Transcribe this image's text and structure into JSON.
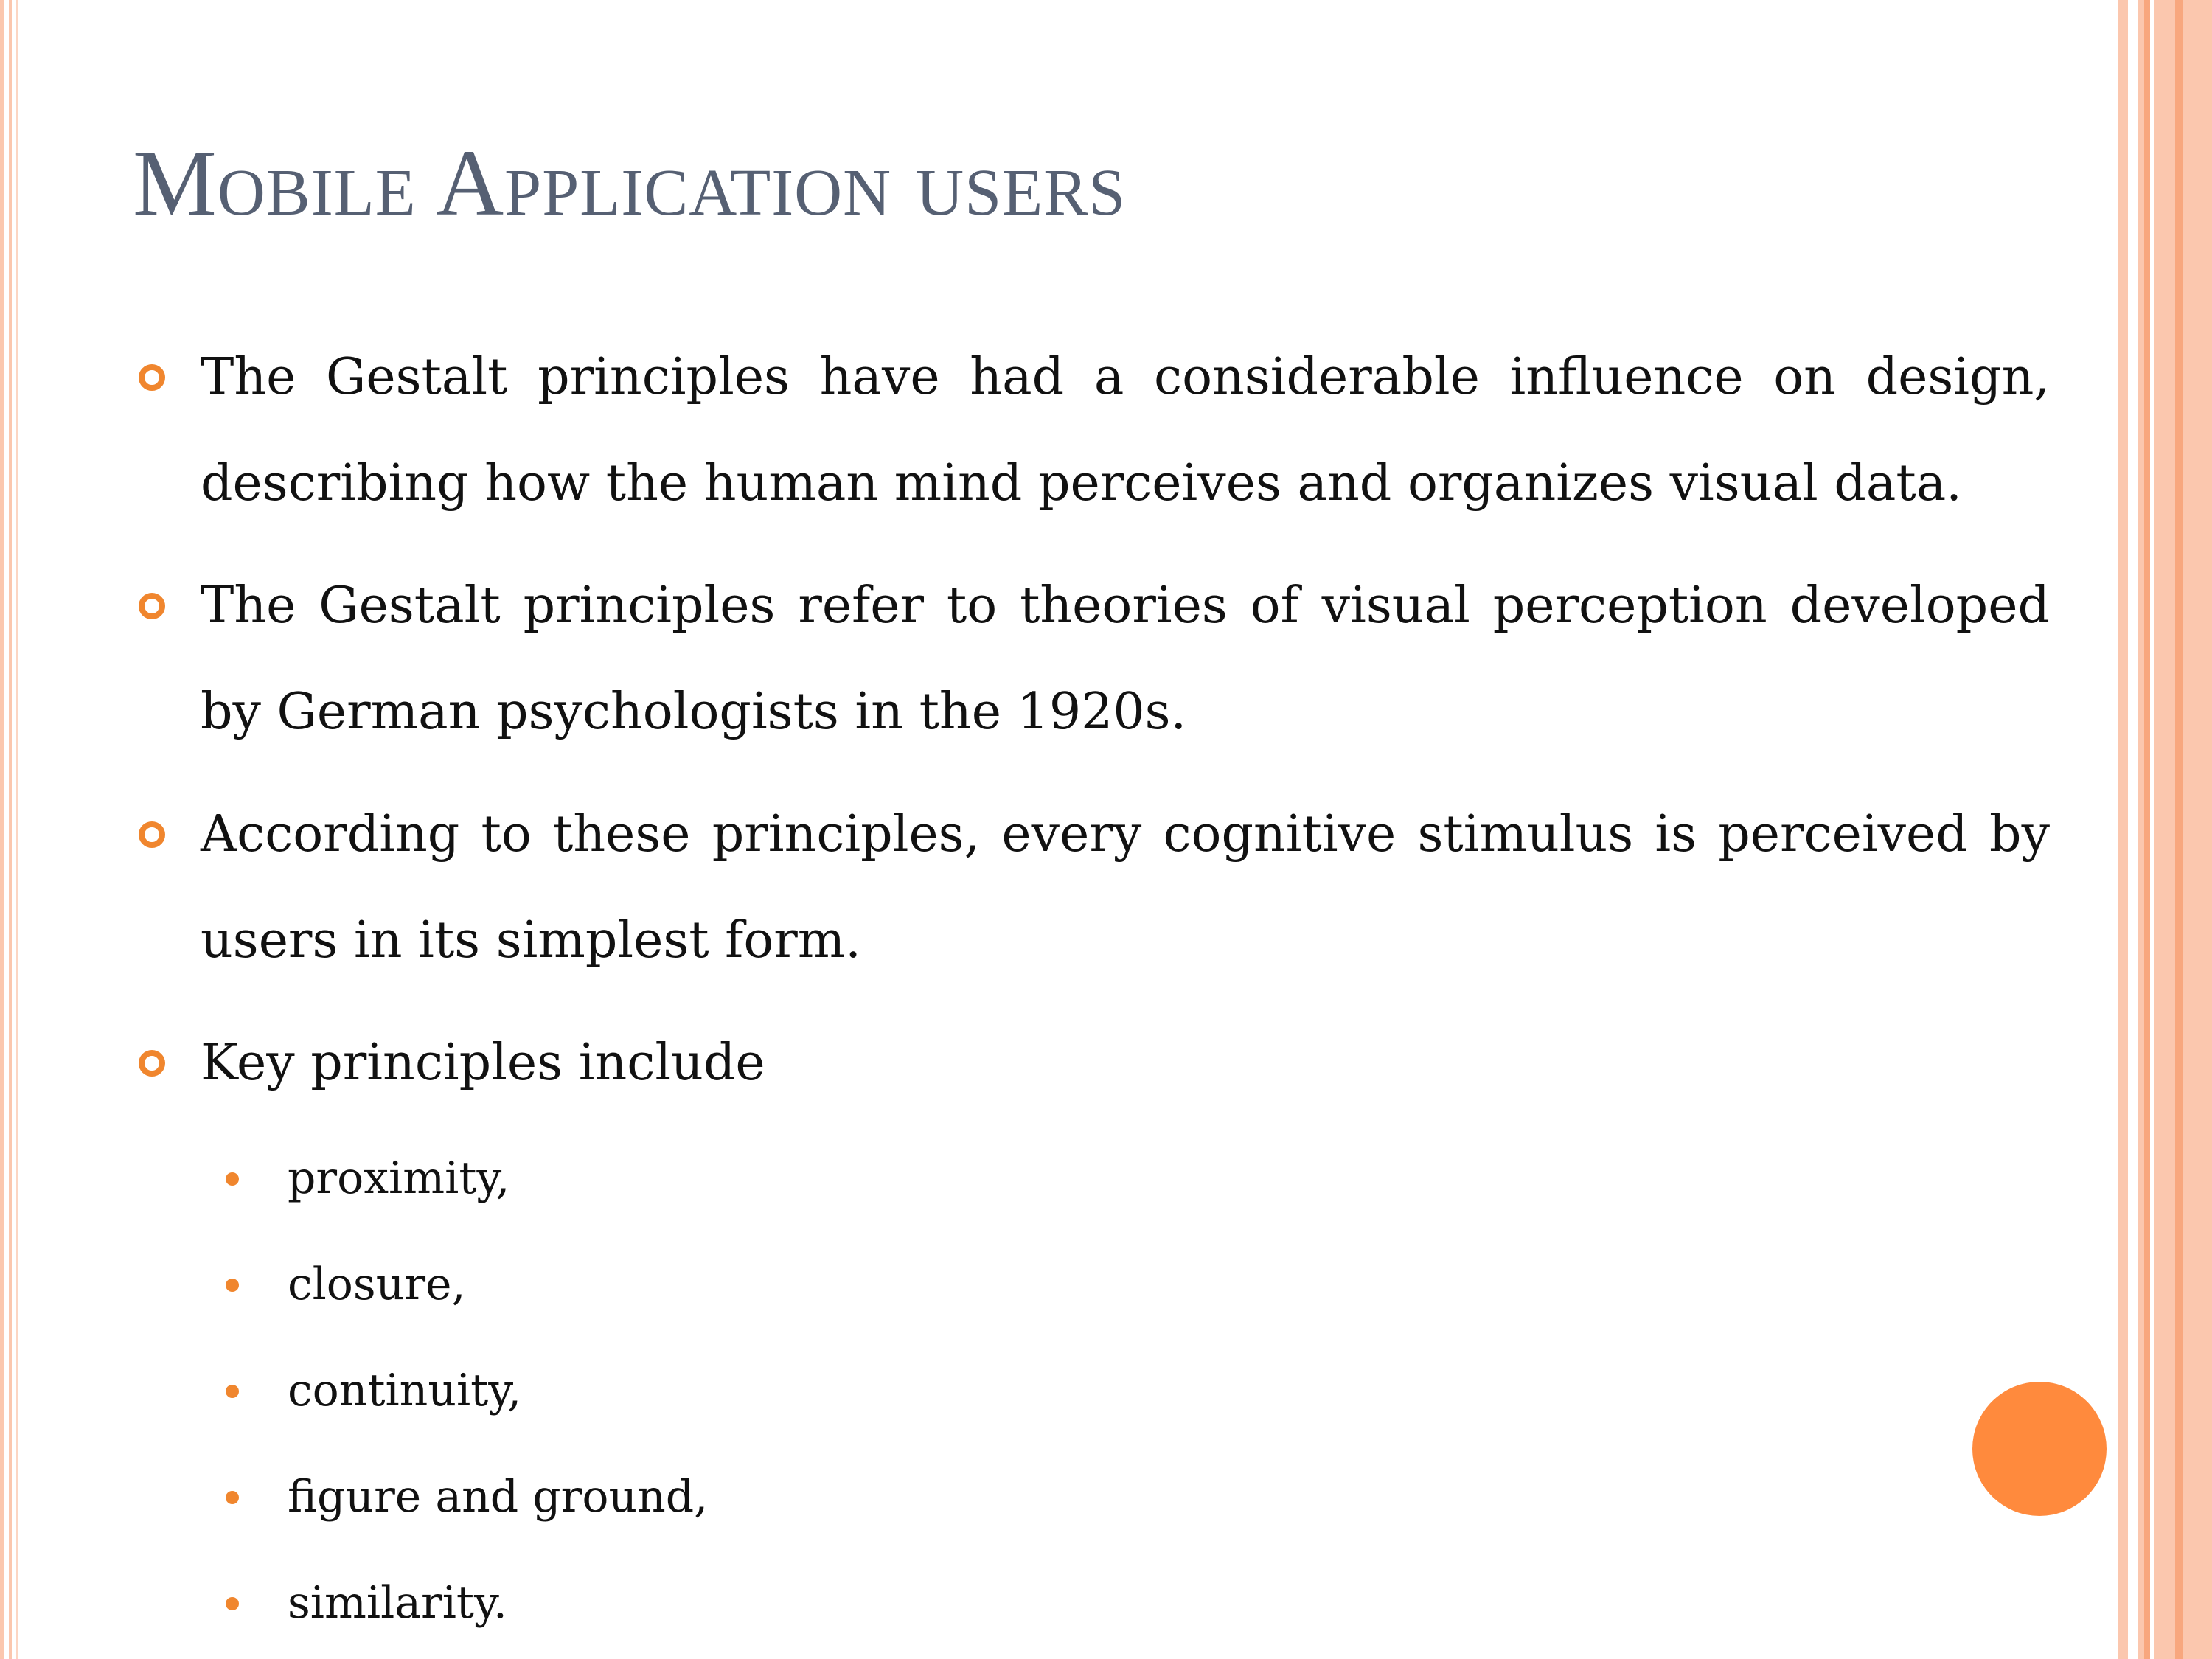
{
  "slide": {
    "title": "Mobile Application users",
    "bullets": [
      "The Gestalt principles have had a considerable influence on design, describing how the human mind perceives and organizes visual data.",
      "The Gestalt principles refer to theories of visual perception developed by German psychologists in the 1920s.",
      "According to these principles, every cognitive stimulus is perceived by users in its simplest form.",
      "Key principles include"
    ],
    "sub_bullets": [
      "proximity,",
      "closure,",
      "continuity,",
      "figure and ground,",
      "similarity."
    ]
  },
  "colors": {
    "title": "#566073",
    "accent": "#F0862E",
    "circle": "#FF8A3D",
    "stripe": "#FBC7AE"
  }
}
